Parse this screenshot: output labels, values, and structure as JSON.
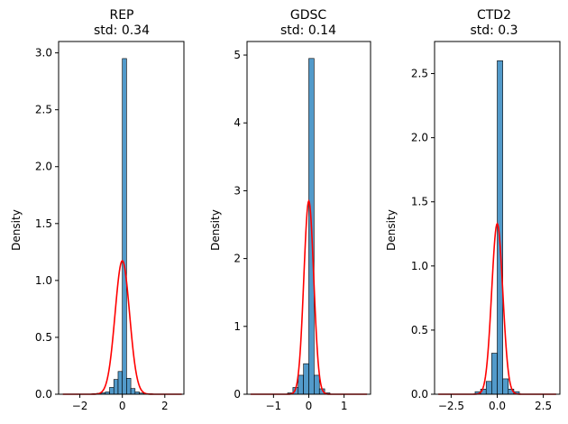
{
  "chart_data": [
    {
      "type": "bar",
      "title": "REP",
      "subtitle": "std: 0.34",
      "xlabel": "",
      "ylabel": "Density",
      "xlim": [
        -3.0,
        2.9
      ],
      "ylim": [
        0,
        3.1
      ],
      "xticks": [
        -2,
        0,
        2
      ],
      "xtick_labels": [
        "−2",
        "0",
        "2"
      ],
      "yticks": [
        0.0,
        0.5,
        1.0,
        1.5,
        2.0,
        2.5,
        3.0
      ],
      "ytick_labels": [
        "0.0",
        "0.5",
        "1.0",
        "1.5",
        "2.0",
        "2.5",
        "3.0"
      ],
      "histogram": {
        "bin_edges": [
          -1.4,
          -1.2,
          -1.0,
          -0.8,
          -0.6,
          -0.4,
          -0.2,
          0.0,
          0.2,
          0.4,
          0.6,
          0.8,
          1.0,
          1.2,
          1.4
        ],
        "density": [
          0.005,
          0.008,
          0.012,
          0.02,
          0.06,
          0.13,
          0.2,
          2.95,
          0.14,
          0.05,
          0.02,
          0.01,
          0.006,
          0.004
        ]
      },
      "curve": {
        "type": "normal-pdf",
        "mean": 0.0,
        "std": 0.34,
        "x_range": [
          -2.8,
          2.8
        ],
        "color": "#ff0000"
      }
    },
    {
      "type": "bar",
      "title": "GDSC",
      "subtitle": "std: 0.14",
      "xlabel": "",
      "ylabel": "Density",
      "xlim": [
        -1.75,
        1.75
      ],
      "ylim": [
        0,
        5.2
      ],
      "xticks": [
        -1,
        0,
        1
      ],
      "xtick_labels": [
        "−1",
        "0",
        "1"
      ],
      "yticks": [
        0,
        1,
        2,
        3,
        4,
        5
      ],
      "ytick_labels": [
        "0",
        "1",
        "2",
        "3",
        "4",
        "5"
      ],
      "histogram": {
        "bin_edges": [
          -0.6,
          -0.45,
          -0.3,
          -0.15,
          0.0,
          0.15,
          0.3,
          0.45,
          0.6
        ],
        "density": [
          0.02,
          0.1,
          0.28,
          0.45,
          4.95,
          0.28,
          0.08,
          0.02
        ]
      },
      "curve": {
        "type": "normal-pdf",
        "mean": 0.0,
        "std": 0.14,
        "x_range": [
          -1.65,
          1.65
        ],
        "color": "#ff0000"
      }
    },
    {
      "type": "bar",
      "title": "CTD2",
      "subtitle": "std: 0.3",
      "xlabel": "",
      "ylabel": "Density",
      "xlim": [
        -3.4,
        3.4
      ],
      "ylim": [
        0,
        2.75
      ],
      "xticks": [
        -2.5,
        0.0,
        2.5
      ],
      "xtick_labels": [
        "−2.5",
        "0.0",
        "2.5"
      ],
      "yticks": [
        0.0,
        0.5,
        1.0,
        1.5,
        2.0,
        2.5
      ],
      "ytick_labels": [
        "0.0",
        "0.5",
        "1.0",
        "1.5",
        "2.0",
        "2.5"
      ],
      "histogram": {
        "bin_edges": [
          -1.2,
          -0.9,
          -0.6,
          -0.3,
          0.0,
          0.3,
          0.6,
          0.9,
          1.2
        ],
        "density": [
          0.02,
          0.04,
          0.1,
          0.32,
          2.6,
          0.12,
          0.04,
          0.02
        ]
      },
      "curve": {
        "type": "normal-pdf",
        "mean": 0.0,
        "std": 0.3,
        "x_range": [
          -3.2,
          3.2
        ],
        "color": "#ff0000"
      }
    }
  ],
  "colors": {
    "bar_fill": "#3f8fc4",
    "bar_edge": "#000000",
    "curve": "#ff0000",
    "axes": "#000000"
  }
}
